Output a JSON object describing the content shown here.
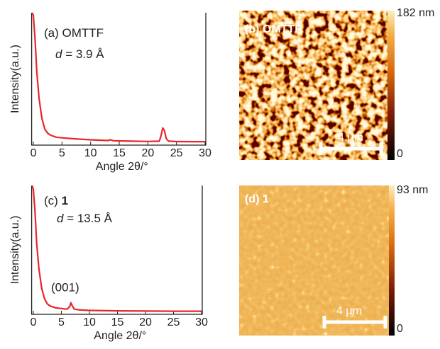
{
  "chart_data": [
    {
      "type": "line",
      "panel_label": "(a) OMTTF",
      "d_symbol": "d",
      "d_value": "= 3.9 Å",
      "x_label": "Angle 2θ/°",
      "y_label": "Intensity(a.u.)",
      "x": [
        -0.2,
        0,
        0.3,
        0.6,
        1,
        1.5,
        2,
        2.5,
        3,
        4,
        5,
        7,
        10,
        13,
        13.5,
        14,
        17,
        20,
        22,
        22.3,
        22.6,
        22.9,
        23.2,
        23.6,
        25,
        28,
        30
      ],
      "series": [
        {
          "color": "#e8262a",
          "values": [
            1,
            0.98,
            0.8,
            0.55,
            0.35,
            0.2,
            0.12,
            0.09,
            0.075,
            0.06,
            0.055,
            0.048,
            0.04,
            0.035,
            0.04,
            0.033,
            0.03,
            0.028,
            0.03,
            0.07,
            0.13,
            0.11,
            0.05,
            0.03,
            0.027,
            0.026,
            0.026
          ]
        }
      ],
      "xlim": [
        -0.3,
        30
      ],
      "xticks": [
        0,
        5,
        10,
        15,
        20,
        25,
        30
      ],
      "ylim": [
        0,
        1
      ]
    },
    {
      "type": "line",
      "panel_label": "(c)",
      "compound": "1",
      "d_symbol": "d",
      "d_value": "= 13.5 Å",
      "annotation": "(001)",
      "x_label": "Angle 2θ/°",
      "y_label": "Intensity(a.u.)",
      "x": [
        -0.2,
        0,
        0.3,
        0.6,
        1,
        1.5,
        2,
        2.5,
        3,
        4,
        5,
        6,
        6.5,
        6.7,
        6.9,
        7.3,
        8,
        10,
        15,
        20,
        25,
        30
      ],
      "series": [
        {
          "color": "#e8262a",
          "values": [
            1,
            0.97,
            0.8,
            0.55,
            0.35,
            0.2,
            0.12,
            0.08,
            0.065,
            0.05,
            0.045,
            0.04,
            0.06,
            0.09,
            0.07,
            0.04,
            0.035,
            0.03,
            0.027,
            0.025,
            0.024,
            0.024
          ]
        }
      ],
      "xlim": [
        -0.3,
        30
      ],
      "xticks": [
        0,
        5,
        10,
        15,
        20,
        25,
        30
      ],
      "ylim": [
        0,
        1
      ]
    }
  ],
  "images": [
    {
      "label": "(b) OMTTF",
      "colorbar_max": "182 nm",
      "colorbar_min": "0",
      "scale_bar": "4 µm"
    },
    {
      "label": "(d) 1",
      "colorbar_max": "93 nm",
      "colorbar_min": "0",
      "scale_bar": "4 µm"
    }
  ]
}
